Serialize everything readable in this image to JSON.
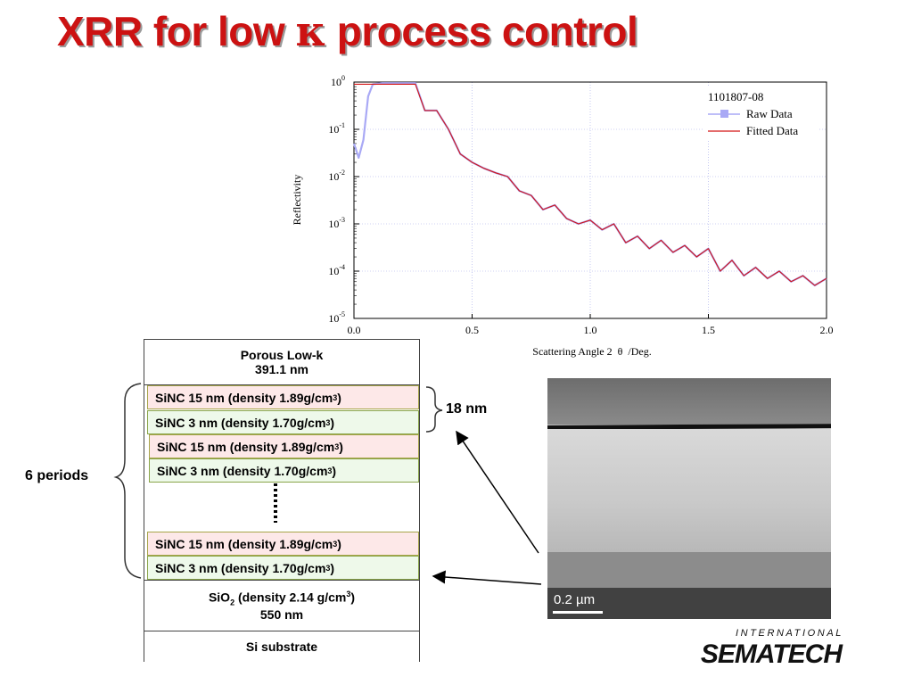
{
  "title": {
    "prefix": "XRR for low ",
    "symbol": "κ",
    "suffix": " process control"
  },
  "chart_data": {
    "type": "line",
    "legend_title": "1101807-08",
    "legend_placement": "top-right",
    "xlabel_parts": {
      "before": "Scattering Angle 2",
      "symbol": "θ",
      "after": "/Deg."
    },
    "ylabel": "Reflectivity",
    "xlim": [
      0.0,
      2.0
    ],
    "ylim_log10": [
      -5,
      0
    ],
    "yscale": "log",
    "grid": true,
    "x_ticks": [
      "0.0",
      "0.5",
      "1.0",
      "1.5",
      "2.0"
    ],
    "y_ticks": [
      {
        "base": "10",
        "exp": "0"
      },
      {
        "base": "10",
        "exp": "-1"
      },
      {
        "base": "10",
        "exp": "-2"
      },
      {
        "base": "10",
        "exp": "-3"
      },
      {
        "base": "10",
        "exp": "-4"
      },
      {
        "base": "10",
        "exp": "-5"
      }
    ],
    "series": [
      {
        "name": "Raw Data",
        "color": "#a9a9f5",
        "x": [
          0.0,
          0.02,
          0.04,
          0.06,
          0.08,
          0.12,
          0.2,
          0.26,
          0.3,
          0.35,
          0.4,
          0.45,
          0.5,
          0.55,
          0.6,
          0.65,
          0.7,
          0.75,
          0.8,
          0.85,
          0.9,
          0.95,
          1.0,
          1.05,
          1.1,
          1.15,
          1.2,
          1.25,
          1.3,
          1.35,
          1.4,
          1.45,
          1.5,
          1.55,
          1.6,
          1.65,
          1.7,
          1.75,
          1.8,
          1.85,
          1.9,
          1.95,
          2.0
        ],
        "y": [
          0.05,
          0.025,
          0.06,
          0.5,
          0.9,
          0.95,
          0.95,
          0.95,
          0.25,
          0.25,
          0.1,
          0.03,
          0.02,
          0.015,
          0.012,
          0.01,
          0.005,
          0.004,
          0.002,
          0.0025,
          0.0013,
          0.001,
          0.0012,
          0.00075,
          0.001,
          0.0004,
          0.00055,
          0.0003,
          0.00045,
          0.00025,
          0.00035,
          0.0002,
          0.0003,
          0.0001,
          0.00017,
          8e-05,
          0.00012,
          7e-05,
          0.0001,
          6e-05,
          8e-05,
          5e-05,
          7e-05
        ]
      },
      {
        "name": "Fitted Data",
        "color": "#d41414",
        "x": [
          0.0,
          0.02,
          0.04,
          0.06,
          0.08,
          0.12,
          0.2,
          0.26,
          0.3,
          0.35,
          0.4,
          0.45,
          0.5,
          0.55,
          0.6,
          0.65,
          0.7,
          0.75,
          0.8,
          0.85,
          0.9,
          0.95,
          1.0,
          1.05,
          1.1,
          1.15,
          1.2,
          1.25,
          1.3,
          1.35,
          1.4,
          1.45,
          1.5,
          1.55,
          1.6,
          1.65,
          1.7,
          1.75,
          1.8,
          1.85,
          1.9,
          1.95,
          2.0
        ],
        "y": [
          0.9,
          0.9,
          0.9,
          0.9,
          0.9,
          0.9,
          0.9,
          0.9,
          0.25,
          0.25,
          0.1,
          0.03,
          0.02,
          0.015,
          0.012,
          0.01,
          0.005,
          0.004,
          0.002,
          0.0025,
          0.0013,
          0.001,
          0.0012,
          0.00075,
          0.001,
          0.0004,
          0.00055,
          0.0003,
          0.00045,
          0.00025,
          0.00035,
          0.0002,
          0.0003,
          0.0001,
          0.00017,
          8e-05,
          0.00012,
          7e-05,
          0.0001,
          6e-05,
          8e-05,
          5e-05,
          7e-05
        ]
      }
    ]
  },
  "stack": {
    "porous": {
      "line1": "Porous Low-k",
      "line2": "391.1 nm"
    },
    "sinc15": {
      "text": "SiNC 15 nm (density 1.89g/cm",
      "sup": "3",
      "close": ")"
    },
    "sinc3": {
      "text": "SiNC 3 nm (density 1.70g/cm",
      "sup": "3",
      "close": ")"
    },
    "sio2": {
      "si": "SiO",
      "sub": "2",
      "text": " (density 2.14 g/cm",
      "sup": "3",
      "close": ")",
      "line2": "550 nm"
    },
    "substrate": "Si substrate",
    "periods_label": "6 periods",
    "thickness_label": "18 nm"
  },
  "tem": {
    "scale": "0.2 µm"
  },
  "logo": {
    "top": "INTERNATIONAL",
    "main": "SEMATECH"
  },
  "colors": {
    "title": "#cc1212",
    "raw": "#a9a9f5",
    "fit": "#d41414",
    "pink": "#fde8e8",
    "green": "#eef9ea"
  }
}
